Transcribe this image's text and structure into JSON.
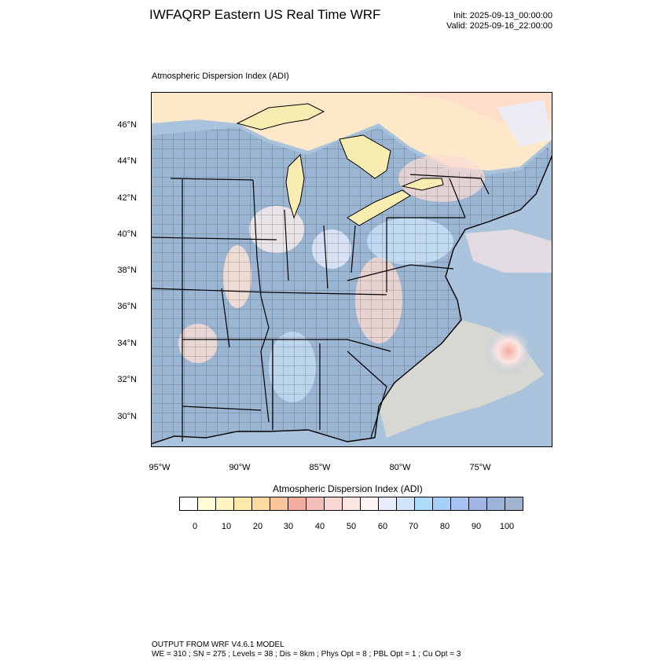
{
  "header": {
    "title": "IWFAQRP Eastern US Real Time WRF",
    "init": "Init: 2025-09-13_00:00:00",
    "valid": "Valid: 2025-09-16_22:00:00"
  },
  "map": {
    "panel_title": "Atmospheric Dispersion Index   (ADI)",
    "lat_labels": [
      "46°N",
      "44°N",
      "42°N",
      "40°N",
      "38°N",
      "36°N",
      "34°N",
      "32°N",
      "30°N"
    ],
    "lon_labels": [
      "95°W",
      "90°W",
      "85°W",
      "80°W",
      "75°W"
    ],
    "ocean_color": "#a9c3dc",
    "land_dominant_color": "#9bb6d3",
    "lake_color": "#f8ecb0"
  },
  "colorbar": {
    "title": "Atmospheric Dispersion Index  (ADI)",
    "labels": [
      "0",
      "10",
      "20",
      "30",
      "40",
      "50",
      "60",
      "70",
      "80",
      "90",
      "100"
    ],
    "colors": [
      "#ffffff",
      "#fffcd8",
      "#fff3c0",
      "#ffe9a8",
      "#ffdba0",
      "#fcc69a",
      "#f7aca0",
      "#f5bfb9",
      "#f9d6d2",
      "#fbe6e2",
      "#fdf4f2",
      "#e9eefe",
      "#cfe5fb",
      "#acdcfa",
      "#a6d0f7",
      "#a7c2f2",
      "#a2b6e6",
      "#9db4d8",
      "#a0b3cf"
    ]
  },
  "footer": {
    "line1": "OUTPUT FROM WRF V4.6.1 MODEL",
    "line2": "WE = 310 ; SN = 275 ; Levels = 38 ; Dis = 8km ; Phys Opt = 8 ; PBL Opt = 1 ; Cu Opt = 3"
  }
}
